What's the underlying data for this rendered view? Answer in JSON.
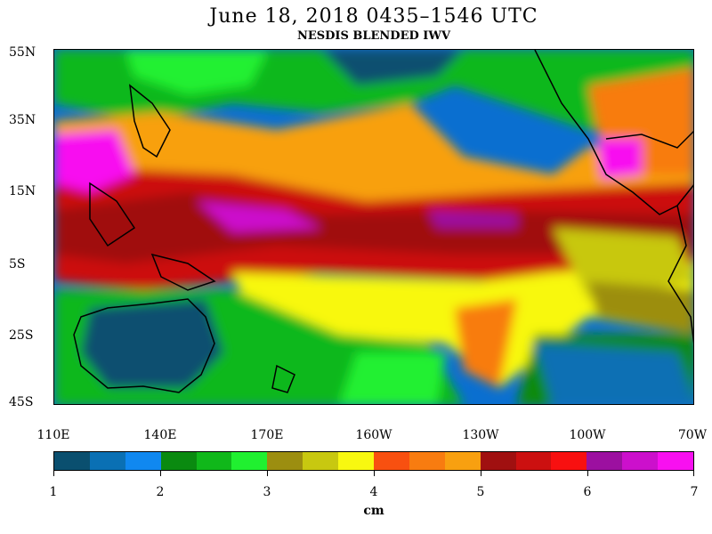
{
  "title": "June 18, 2018  0435–1546 UTC",
  "subtitle": "NESDIS BLENDED IWV",
  "map": {
    "lat_labels": [
      "55N",
      "35N",
      "15N",
      "5S",
      "25S",
      "45S"
    ],
    "lon_labels": [
      "110E",
      "140E",
      "170E",
      "160W",
      "130W",
      "100W",
      "70W"
    ]
  },
  "colorbar": {
    "tick_labels": [
      "1",
      "2",
      "3",
      "4",
      "5",
      "6",
      "7"
    ],
    "units": "cm",
    "colors": [
      "#0a4f6f",
      "#0a70b4",
      "#1088f0",
      "#0a8a10",
      "#10b81a",
      "#20f030",
      "#9c8e10",
      "#c8c810",
      "#f8f810",
      "#f85010",
      "#f87c10",
      "#f8a010",
      "#a01010",
      "#cc1010",
      "#f81010",
      "#9c10a0",
      "#cc10cc",
      "#f810f0"
    ]
  }
}
